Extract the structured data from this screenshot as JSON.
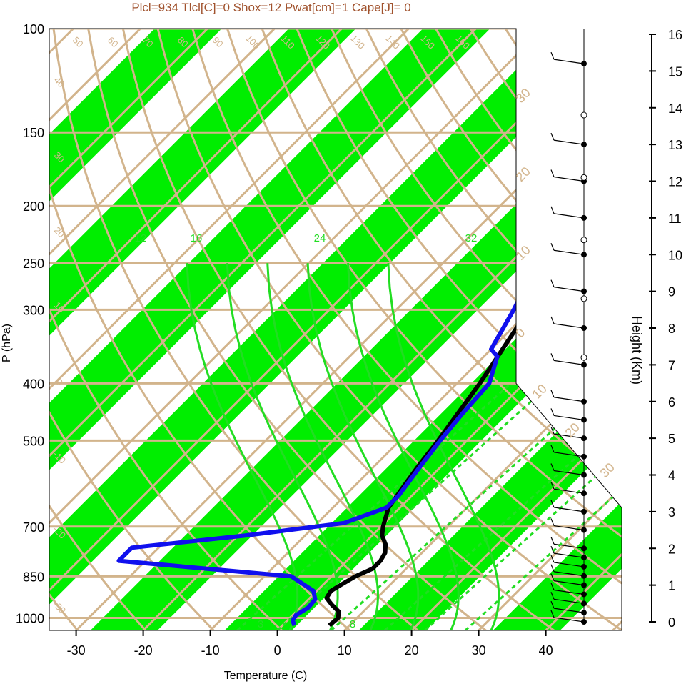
{
  "title": "Plcl=934 Tlcl[C]=0 Shox=12 Pwat[cm]=1 Cape[J]= 0",
  "colors": {
    "band": "#00ee00",
    "isotherm": "#d2b48c",
    "mixing_ratio": "#22dd22",
    "title": "#a0522d",
    "dewpoint": "#1010ee",
    "temperature": "#000000"
  },
  "chart_data": {
    "type": "line",
    "xlabel": "Temperature (C)",
    "ylabel": "P (hPa)",
    "y2label": "Height (Km)",
    "xlim": [
      -34,
      36
    ],
    "xlim_bottom_panel": [
      -34,
      52
    ],
    "ylim": [
      1050,
      100
    ],
    "y_log_scale": true,
    "x_ticks": [
      -30,
      -20,
      -10,
      0,
      10,
      20,
      30,
      40
    ],
    "x_tick_labels": [
      "-30",
      "-20",
      "-10",
      "0",
      "10",
      "20",
      "30",
      "40"
    ],
    "p_ticks": [
      100,
      150,
      200,
      250,
      300,
      400,
      500,
      700,
      850,
      1000
    ],
    "p_tick_labels": [
      "100",
      "150",
      "200",
      "250",
      "300",
      "400",
      "500",
      "700",
      "850",
      "1000"
    ],
    "height_ticks": [
      0,
      1,
      2,
      3,
      4,
      5,
      6,
      7,
      8,
      9,
      10,
      11,
      12,
      13,
      14,
      15,
      16
    ],
    "height_tick_labels": [
      "0",
      "1",
      "2",
      "3",
      "4",
      "5",
      "6",
      "7",
      "8",
      "9",
      "10",
      "11",
      "12",
      "13",
      "14",
      "15",
      "16"
    ],
    "isotherm_labels_top": [
      "50",
      "60",
      "70",
      "80",
      "90",
      "100",
      "110",
      "120",
      "130",
      "140",
      "150",
      "160"
    ],
    "isotherm_labels_left": [
      "40",
      "30",
      "20",
      "10",
      "0",
      "-10",
      "-20",
      "-30"
    ],
    "isotherm_labels_right": [
      "30",
      "20",
      "10",
      "0",
      "10",
      "20",
      "30"
    ],
    "mixing_ratio_labels": [
      "12",
      "16",
      "24",
      "32",
      "3",
      "8"
    ],
    "series": [
      {
        "name": "",
        "role": "temperature",
        "points": [
          [
            7.0,
            1030
          ],
          [
            7.2,
            1000
          ],
          [
            6.3,
            975
          ],
          [
            4.3,
            950
          ],
          [
            2.5,
            925
          ],
          [
            2.1,
            900
          ],
          [
            2.8,
            875
          ],
          [
            3.6,
            850
          ],
          [
            5.0,
            825
          ],
          [
            5.0,
            800
          ],
          [
            4.5,
            775
          ],
          [
            3.3,
            750
          ],
          [
            1.5,
            725
          ],
          [
            0.3,
            700
          ],
          [
            -1.7,
            650
          ],
          [
            -2.6,
            600
          ],
          [
            -3.5,
            550
          ],
          [
            -4.3,
            500
          ],
          [
            -5.4,
            450
          ],
          [
            -6.6,
            400
          ],
          [
            -8.3,
            350
          ],
          [
            -10.3,
            300
          ],
          [
            -12.5,
            260
          ],
          [
            -13.2,
            235
          ],
          [
            -12.6,
            225
          ],
          [
            -11.8,
            215
          ],
          [
            -10.0,
            200
          ],
          [
            -5.2,
            175
          ],
          [
            0,
            160
          ],
          [
            5.0,
            150
          ],
          [
            8.5,
            137
          ],
          [
            11.5,
            125
          ],
          [
            14,
            113
          ],
          [
            16,
            105
          ],
          [
            17.2,
            100
          ]
        ]
      },
      {
        "name": "",
        "role": "dewpoint",
        "points": [
          [
            1.8,
            1030
          ],
          [
            0.8,
            1010
          ],
          [
            0.5,
            990
          ],
          [
            1.2,
            960
          ],
          [
            1.0,
            930
          ],
          [
            -0.5,
            900
          ],
          [
            -6,
            850
          ],
          [
            -34,
            800
          ],
          [
            -34,
            760
          ],
          [
            -19,
            725
          ],
          [
            -6,
            690
          ],
          [
            -2,
            650
          ],
          [
            -2,
            620
          ],
          [
            -3,
            560
          ],
          [
            -4,
            500
          ],
          [
            -4.7,
            450
          ],
          [
            -5.2,
            400
          ],
          [
            -8,
            360
          ],
          [
            -10,
            350
          ],
          [
            -12.5,
            300
          ],
          [
            -16,
            250
          ],
          [
            -16.5,
            230
          ],
          [
            -17.5,
            210
          ],
          [
            -19,
            200
          ],
          [
            -22.5,
            180
          ],
          [
            -23.0,
            175
          ],
          [
            -20,
            150
          ],
          [
            -14,
            115
          ],
          [
            -10,
            100
          ]
        ]
      }
    ],
    "wind_barb_panel": {
      "filled_dots_km": [
        0,
        0.25,
        0.5,
        0.75,
        1,
        1.25,
        1.5,
        1.75,
        2,
        2.5,
        3,
        3.5,
        4,
        4.5,
        5,
        5.5,
        6,
        7,
        8,
        9,
        10,
        11,
        12,
        13,
        15.2
      ],
      "open_dots_km": [
        7.2,
        8.8,
        10.4,
        12.1,
        13.8
      ]
    }
  }
}
